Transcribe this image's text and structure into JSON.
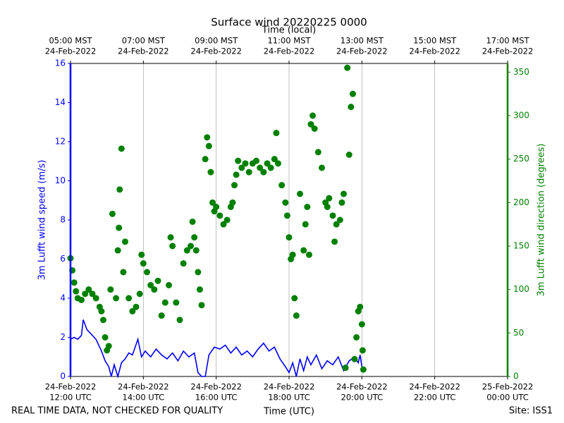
{
  "chart_data": {
    "type": "combo",
    "title": "Surface wind 20220225 0000",
    "xlabel": "Time (UTC)",
    "x2label": "Time (local)",
    "ylabel": "3m Lufft wind speed (m/s)",
    "y2label": "3m Lufft wind direction (degrees)",
    "footer_left": "REAL TIME DATA, NOT CHECKED FOR QUALITY",
    "footer_right": "Site: ISS1",
    "xlim": [
      12,
      24
    ],
    "xticks": [
      {
        "value": 12,
        "label": [
          "24-Feb-2022",
          "12:00 UTC"
        ]
      },
      {
        "value": 14,
        "label": [
          "24-Feb-2022",
          "14:00 UTC"
        ]
      },
      {
        "value": 16,
        "label": [
          "24-Feb-2022",
          "16:00 UTC"
        ]
      },
      {
        "value": 18,
        "label": [
          "24-Feb-2022",
          "18:00 UTC"
        ]
      },
      {
        "value": 20,
        "label": [
          "24-Feb-2022",
          "20:00 UTC"
        ]
      },
      {
        "value": 22,
        "label": [
          "24-Feb-2022",
          "22:00 UTC"
        ]
      },
      {
        "value": 24,
        "label": [
          "25-Feb-2022",
          "00:00 UTC"
        ]
      }
    ],
    "x2ticks": [
      {
        "value": 12,
        "label": [
          "05:00 MST",
          "24-Feb-2022"
        ]
      },
      {
        "value": 14,
        "label": [
          "07:00 MST",
          "24-Feb-2022"
        ]
      },
      {
        "value": 16,
        "label": [
          "09:00 MST",
          "24-Feb-2022"
        ]
      },
      {
        "value": 18,
        "label": [
          "11:00 MST",
          "24-Feb-2022"
        ]
      },
      {
        "value": 20,
        "label": [
          "13:00 MST",
          "24-Feb-2022"
        ]
      },
      {
        "value": 22,
        "label": [
          "15:00 MST",
          "24-Feb-2022"
        ]
      },
      {
        "value": 24,
        "label": [
          "17:00 MST",
          "24-Feb-2022"
        ]
      }
    ],
    "ylim": [
      0,
      16
    ],
    "yticks": [
      0,
      2,
      4,
      6,
      8,
      10,
      12,
      14,
      16
    ],
    "y2lim": [
      0,
      360
    ],
    "y2ticks": [
      0,
      50,
      100,
      150,
      200,
      250,
      300,
      350
    ],
    "grid": true,
    "series": [
      {
        "type": "line",
        "color": "#0000ff",
        "x": [
          12.0,
          12.1,
          12.2,
          12.3,
          12.35,
          12.45,
          12.55,
          12.7,
          12.85,
          12.95,
          13.05,
          13.12,
          13.2,
          13.3,
          13.4,
          13.5,
          13.6,
          13.7,
          13.85,
          13.95,
          14.05,
          14.2,
          14.35,
          14.5,
          14.65,
          14.8,
          14.95,
          15.1,
          15.25,
          15.4,
          15.5,
          15.6,
          15.7,
          15.8,
          15.95,
          16.1,
          16.25,
          16.4,
          16.55,
          16.7,
          16.85,
          17.0,
          17.15,
          17.3,
          17.45,
          17.6,
          17.75,
          17.9,
          18.0,
          18.1,
          18.2,
          18.3,
          18.4,
          18.5,
          18.6,
          18.75,
          18.9,
          19.05,
          19.2,
          19.35,
          19.5,
          19.65,
          19.8,
          19.9,
          19.95,
          20.0
        ],
        "values": [
          1.9,
          2.0,
          1.9,
          2.1,
          2.9,
          2.4,
          2.2,
          1.9,
          1.3,
          0.8,
          0.5,
          0.0,
          0.6,
          0.0,
          0.7,
          0.9,
          1.2,
          1.1,
          1.9,
          1.0,
          1.3,
          1.0,
          1.4,
          1.1,
          0.9,
          1.2,
          0.8,
          1.3,
          1.0,
          1.2,
          0.2,
          0.0,
          0.0,
          1.1,
          1.5,
          1.4,
          1.6,
          1.2,
          1.5,
          1.1,
          1.3,
          1.0,
          1.4,
          1.7,
          1.3,
          1.5,
          0.9,
          0.5,
          0.2,
          0.7,
          0.0,
          0.9,
          0.3,
          1.0,
          0.6,
          1.1,
          0.4,
          0.8,
          0.6,
          1.0,
          0.3,
          0.8,
          1.0,
          0.7,
          1.1,
          0.5
        ]
      },
      {
        "type": "scatter",
        "axis": "y2",
        "color": "#008000",
        "x": [
          12.0,
          12.05,
          12.1,
          12.15,
          12.2,
          12.3,
          12.4,
          12.5,
          12.6,
          12.7,
          12.8,
          12.85,
          12.9,
          12.95,
          13.0,
          13.05,
          13.1,
          13.15,
          13.25,
          13.3,
          13.33,
          13.35,
          13.4,
          13.45,
          13.5,
          13.6,
          13.7,
          13.8,
          13.9,
          13.95,
          14.0,
          14.1,
          14.2,
          14.3,
          14.4,
          14.5,
          14.6,
          14.7,
          14.75,
          14.8,
          14.9,
          15.0,
          15.1,
          15.2,
          15.3,
          15.35,
          15.4,
          15.45,
          15.5,
          15.55,
          15.6,
          15.7,
          15.75,
          15.8,
          15.85,
          15.9,
          15.95,
          16.0,
          16.1,
          16.2,
          16.3,
          16.4,
          16.45,
          16.5,
          16.55,
          16.6,
          16.7,
          16.8,
          16.9,
          17.0,
          17.1,
          17.2,
          17.3,
          17.4,
          17.5,
          17.6,
          17.65,
          17.7,
          17.8,
          17.9,
          17.95,
          18.0,
          18.05,
          18.1,
          18.15,
          18.2,
          18.3,
          18.4,
          18.45,
          18.5,
          18.55,
          18.6,
          18.65,
          18.7,
          18.8,
          18.9,
          19.0,
          19.05,
          19.1,
          19.2,
          19.25,
          19.3,
          19.4,
          19.45,
          19.5,
          19.55,
          19.6,
          19.65,
          19.7,
          19.75,
          19.8,
          19.85,
          19.9,
          19.95,
          20.0,
          20.02,
          20.04
        ],
        "values": [
          136,
          122,
          108,
          98,
          90,
          88,
          95,
          100,
          95,
          90,
          80,
          75,
          65,
          45,
          30,
          35,
          100,
          187,
          90,
          145,
          171,
          215,
          262,
          120,
          155,
          90,
          75,
          80,
          95,
          140,
          130,
          120,
          105,
          100,
          110,
          70,
          85,
          105,
          160,
          150,
          85,
          65,
          130,
          145,
          150,
          178,
          160,
          145,
          120,
          100,
          82,
          250,
          275,
          265,
          235,
          200,
          190,
          195,
          185,
          175,
          180,
          195,
          200,
          220,
          232,
          248,
          240,
          245,
          235,
          245,
          248,
          240,
          235,
          245,
          240,
          250,
          280,
          245,
          220,
          200,
          185,
          160,
          135,
          140,
          90,
          70,
          210,
          145,
          175,
          195,
          140,
          290,
          300,
          285,
          258,
          240,
          200,
          195,
          205,
          185,
          155,
          175,
          180,
          200,
          210,
          10,
          355,
          255,
          310,
          325,
          20,
          45,
          75,
          80,
          60,
          30,
          8
        ]
      }
    ]
  }
}
